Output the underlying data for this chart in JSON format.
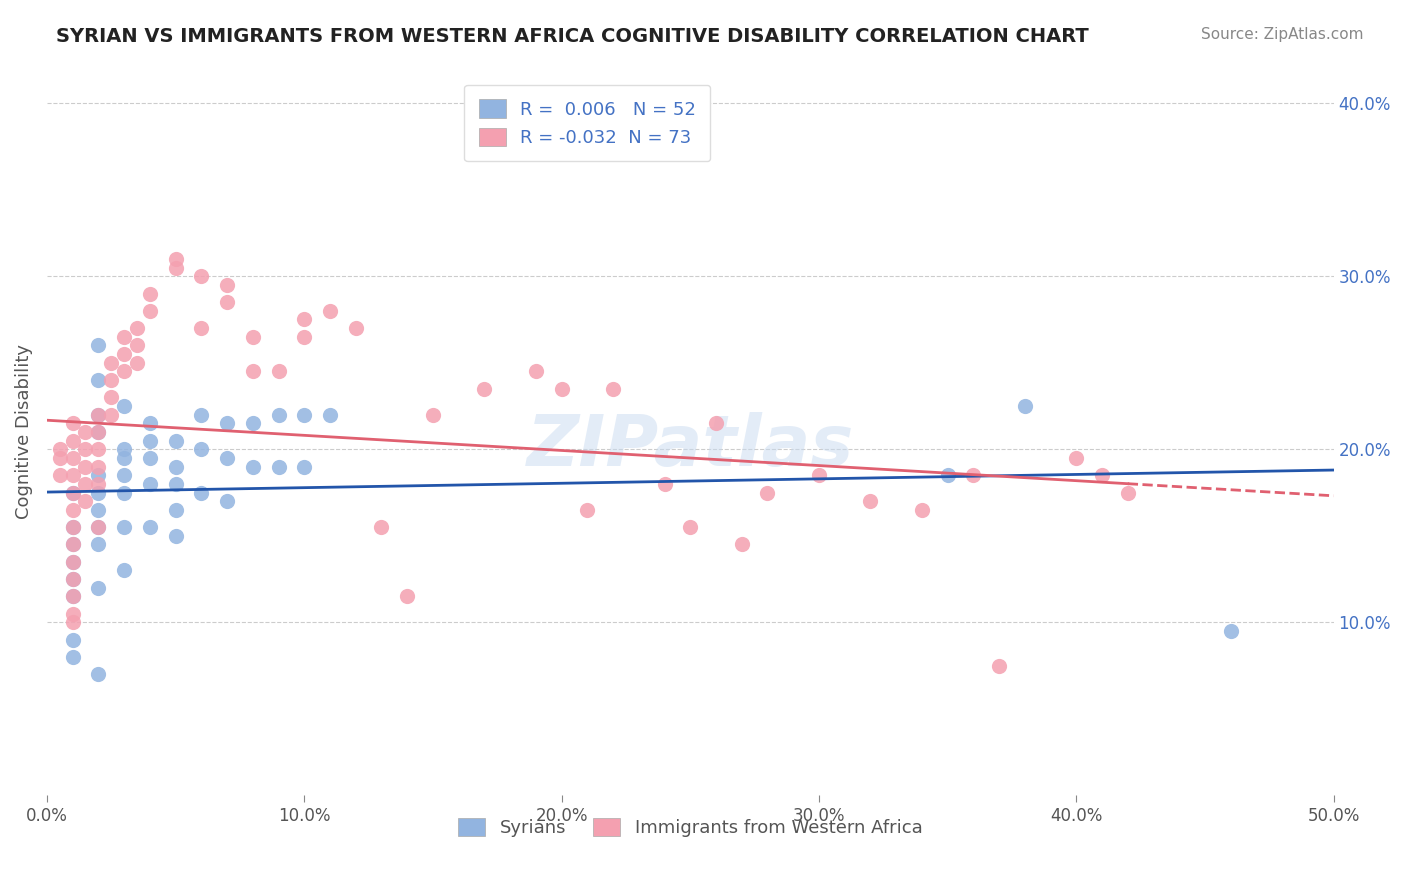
{
  "title": "SYRIAN VS IMMIGRANTS FROM WESTERN AFRICA COGNITIVE DISABILITY CORRELATION CHART",
  "source": "Source: ZipAtlas.com",
  "xlabel_bottom": "",
  "ylabel": "Cognitive Disability",
  "x_min": 0.0,
  "x_max": 0.5,
  "y_min": 0.0,
  "y_max": 0.42,
  "x_ticks": [
    0.0,
    0.1,
    0.2,
    0.3,
    0.4,
    0.5
  ],
  "x_tick_labels": [
    "0.0%",
    "10.0%",
    "20.0%",
    "30.0%",
    "40.0%",
    "50.0%"
  ],
  "y_ticks": [
    0.1,
    0.2,
    0.3,
    0.4
  ],
  "y_tick_labels": [
    "10.0%",
    "20.0%",
    "30.0%",
    "40.0%"
  ],
  "legend_r1": "R =  0.006",
  "legend_n1": "N = 52",
  "legend_r2": "R = -0.032",
  "legend_n2": "N = 73",
  "color_blue": "#92b4e0",
  "color_pink": "#f4a0b0",
  "line_blue": "#2255aa",
  "line_pink": "#e06070",
  "watermark": "ZIPatlas",
  "syrians_x": [
    0.01,
    0.01,
    0.01,
    0.01,
    0.01,
    0.01,
    0.01,
    0.01,
    0.02,
    0.02,
    0.02,
    0.02,
    0.02,
    0.02,
    0.02,
    0.02,
    0.02,
    0.02,
    0.02,
    0.03,
    0.03,
    0.03,
    0.03,
    0.03,
    0.03,
    0.03,
    0.04,
    0.04,
    0.04,
    0.04,
    0.04,
    0.05,
    0.05,
    0.05,
    0.05,
    0.05,
    0.06,
    0.06,
    0.06,
    0.07,
    0.07,
    0.07,
    0.08,
    0.08,
    0.09,
    0.09,
    0.1,
    0.1,
    0.11,
    0.35,
    0.38,
    0.46
  ],
  "syrians_y": [
    0.175,
    0.155,
    0.145,
    0.135,
    0.125,
    0.115,
    0.09,
    0.08,
    0.26,
    0.24,
    0.22,
    0.21,
    0.185,
    0.175,
    0.165,
    0.155,
    0.145,
    0.12,
    0.07,
    0.225,
    0.2,
    0.195,
    0.185,
    0.175,
    0.155,
    0.13,
    0.215,
    0.205,
    0.195,
    0.18,
    0.155,
    0.205,
    0.19,
    0.18,
    0.165,
    0.15,
    0.22,
    0.2,
    0.175,
    0.215,
    0.195,
    0.17,
    0.215,
    0.19,
    0.22,
    0.19,
    0.22,
    0.19,
    0.22,
    0.185,
    0.225,
    0.095
  ],
  "western_africa_x": [
    0.005,
    0.005,
    0.005,
    0.01,
    0.01,
    0.01,
    0.01,
    0.01,
    0.01,
    0.01,
    0.01,
    0.01,
    0.01,
    0.01,
    0.01,
    0.01,
    0.015,
    0.015,
    0.015,
    0.015,
    0.015,
    0.02,
    0.02,
    0.02,
    0.02,
    0.02,
    0.02,
    0.025,
    0.025,
    0.025,
    0.025,
    0.03,
    0.03,
    0.03,
    0.035,
    0.035,
    0.035,
    0.04,
    0.04,
    0.05,
    0.05,
    0.06,
    0.06,
    0.07,
    0.07,
    0.08,
    0.08,
    0.09,
    0.1,
    0.1,
    0.11,
    0.12,
    0.13,
    0.14,
    0.15,
    0.17,
    0.19,
    0.2,
    0.21,
    0.22,
    0.24,
    0.25,
    0.26,
    0.27,
    0.28,
    0.3,
    0.32,
    0.34,
    0.36,
    0.37,
    0.4,
    0.41,
    0.42
  ],
  "western_africa_y": [
    0.2,
    0.195,
    0.185,
    0.215,
    0.205,
    0.195,
    0.185,
    0.175,
    0.165,
    0.155,
    0.145,
    0.135,
    0.125,
    0.115,
    0.105,
    0.1,
    0.21,
    0.2,
    0.19,
    0.18,
    0.17,
    0.22,
    0.21,
    0.2,
    0.19,
    0.18,
    0.155,
    0.25,
    0.24,
    0.23,
    0.22,
    0.265,
    0.255,
    0.245,
    0.27,
    0.26,
    0.25,
    0.29,
    0.28,
    0.31,
    0.305,
    0.3,
    0.27,
    0.295,
    0.285,
    0.245,
    0.265,
    0.245,
    0.275,
    0.265,
    0.28,
    0.27,
    0.155,
    0.115,
    0.22,
    0.235,
    0.245,
    0.235,
    0.165,
    0.235,
    0.18,
    0.155,
    0.215,
    0.145,
    0.175,
    0.185,
    0.17,
    0.165,
    0.185,
    0.075,
    0.195,
    0.185,
    0.175
  ]
}
